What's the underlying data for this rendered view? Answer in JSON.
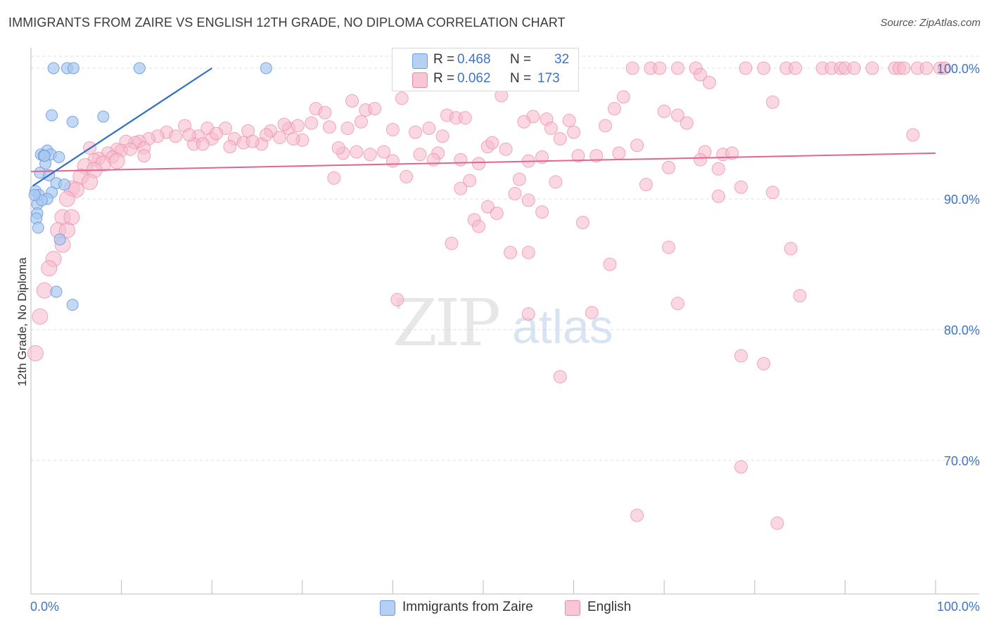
{
  "chart_data": {
    "type": "scatter",
    "title": "IMMIGRANTS FROM ZAIRE VS ENGLISH 12TH GRADE, NO DIPLOMA CORRELATION CHART",
    "source": "Source: ZipAtlas.com",
    "xlabel": "",
    "ylabel": "12th Grade, No Diploma",
    "xlim": [
      0,
      100
    ],
    "ylim": [
      60,
      100
    ],
    "x_tick_labels": [
      "0.0%",
      "100.0%"
    ],
    "y_ticks": [
      70,
      80,
      90,
      100
    ],
    "y_tick_labels": [
      "70.0%",
      "80.0%",
      "90.0%",
      "100.0%"
    ],
    "grid": true,
    "watermark": {
      "zip": "ZIP",
      "atlas": "atlas"
    },
    "legend_stats": [
      {
        "r_label": "R =",
        "r_value": "0.468",
        "n_label": "N =",
        "n_value": "32"
      },
      {
        "r_label": "R =",
        "r_value": "0.062",
        "n_label": "N =",
        "n_value": "173"
      }
    ],
    "series": [
      {
        "name": "Immigrants from Zaire",
        "color": "#6b9ee0",
        "fill": "#a9c8f0",
        "trend": {
          "x0": 0.2,
          "y0": 91.0,
          "x1": 20.0,
          "y1": 100.0,
          "color": "#2f6fc4"
        },
        "points": [
          [
            2.5,
            100
          ],
          [
            4.0,
            100
          ],
          [
            4.7,
            100
          ],
          [
            12.0,
            100
          ],
          [
            26.0,
            100
          ],
          [
            2.3,
            96.4
          ],
          [
            4.6,
            95.9
          ],
          [
            8.0,
            96.3
          ],
          [
            1.8,
            93.7
          ],
          [
            1.1,
            93.4
          ],
          [
            2.2,
            93.4
          ],
          [
            1.4,
            93.3
          ],
          [
            3.1,
            93.2
          ],
          [
            1.6,
            92.7
          ],
          [
            1.0,
            92.0
          ],
          [
            2.0,
            91.8
          ],
          [
            2.8,
            91.2
          ],
          [
            3.7,
            91.1
          ],
          [
            0.5,
            90.6
          ],
          [
            2.3,
            90.5
          ],
          [
            0.9,
            90.3
          ],
          [
            1.8,
            90.0
          ],
          [
            0.7,
            89.6
          ],
          [
            0.7,
            88.9
          ],
          [
            0.6,
            88.5
          ],
          [
            0.8,
            87.8
          ],
          [
            3.2,
            86.9
          ],
          [
            2.8,
            82.9
          ],
          [
            4.6,
            81.9
          ],
          [
            1.2,
            89.9
          ],
          [
            0.4,
            90.3
          ],
          [
            1.5,
            93.3
          ]
        ]
      },
      {
        "name": "English",
        "color": "#e889a8",
        "fill": "#f6bccd",
        "trend": {
          "x0": 0,
          "y0": 92.1,
          "x1": 100,
          "y1": 93.5,
          "color": "#e06690"
        },
        "points": [
          [
            66.5,
            100
          ],
          [
            68.5,
            100
          ],
          [
            69.5,
            100
          ],
          [
            71.5,
            100
          ],
          [
            73.5,
            100
          ],
          [
            79.0,
            100
          ],
          [
            81.0,
            100
          ],
          [
            83.5,
            100
          ],
          [
            84.5,
            100
          ],
          [
            87.5,
            100
          ],
          [
            88.5,
            100
          ],
          [
            89.5,
            100
          ],
          [
            90.0,
            100
          ],
          [
            91.0,
            100
          ],
          [
            93.0,
            100
          ],
          [
            95.5,
            100
          ],
          [
            96.0,
            100
          ],
          [
            96.5,
            100
          ],
          [
            98.0,
            100
          ],
          [
            99.0,
            100
          ],
          [
            100.5,
            100
          ],
          [
            101.0,
            100
          ],
          [
            74.0,
            99.5
          ],
          [
            75.0,
            98.9
          ],
          [
            52.0,
            97.9
          ],
          [
            35.5,
            97.5
          ],
          [
            41.0,
            97.7
          ],
          [
            82.0,
            97.4
          ],
          [
            65.5,
            97.8
          ],
          [
            31.5,
            96.9
          ],
          [
            32.5,
            96.6
          ],
          [
            37.0,
            96.8
          ],
          [
            38.0,
            96.9
          ],
          [
            46.0,
            96.4
          ],
          [
            47.0,
            96.2
          ],
          [
            48.0,
            96.2
          ],
          [
            55.5,
            96.3
          ],
          [
            57.0,
            96.1
          ],
          [
            59.5,
            96.0
          ],
          [
            64.5,
            96.9
          ],
          [
            70.0,
            96.7
          ],
          [
            71.5,
            96.4
          ],
          [
            33.0,
            95.5
          ],
          [
            35.0,
            95.4
          ],
          [
            36.5,
            95.9
          ],
          [
            40.0,
            95.3
          ],
          [
            44.0,
            95.4
          ],
          [
            54.5,
            95.9
          ],
          [
            57.5,
            95.4
          ],
          [
            60.0,
            95.1
          ],
          [
            63.5,
            95.6
          ],
          [
            72.5,
            95.8
          ],
          [
            97.5,
            94.9
          ],
          [
            17.0,
            95.6
          ],
          [
            19.5,
            95.4
          ],
          [
            21.5,
            95.4
          ],
          [
            24.0,
            95.2
          ],
          [
            26.5,
            95.2
          ],
          [
            28.5,
            95.4
          ],
          [
            29.5,
            95.6
          ],
          [
            30.0,
            94.5
          ],
          [
            15.0,
            95.1
          ],
          [
            16.0,
            94.8
          ],
          [
            14.0,
            94.8
          ],
          [
            13.0,
            94.6
          ],
          [
            12.0,
            94.4
          ],
          [
            11.5,
            94.3
          ],
          [
            10.5,
            94.4
          ],
          [
            18.5,
            94.8
          ],
          [
            20.0,
            94.6
          ],
          [
            22.5,
            94.6
          ],
          [
            23.5,
            94.3
          ],
          [
            25.5,
            94.2
          ],
          [
            27.5,
            94.7
          ],
          [
            29.0,
            94.6
          ],
          [
            18.0,
            94.2
          ],
          [
            19.0,
            94.2
          ],
          [
            9.5,
            93.8
          ],
          [
            10.0,
            93.7
          ],
          [
            8.5,
            93.5
          ],
          [
            9.0,
            93.2
          ],
          [
            7.5,
            93.1
          ],
          [
            7.0,
            93.0
          ],
          [
            8.0,
            92.7
          ],
          [
            36.0,
            93.6
          ],
          [
            39.0,
            93.6
          ],
          [
            43.0,
            93.4
          ],
          [
            45.0,
            93.5
          ],
          [
            47.5,
            93.0
          ],
          [
            50.5,
            94.0
          ],
          [
            52.5,
            93.8
          ],
          [
            56.5,
            93.2
          ],
          [
            60.5,
            93.3
          ],
          [
            62.5,
            93.3
          ],
          [
            65.0,
            93.5
          ],
          [
            74.5,
            93.6
          ],
          [
            76.5,
            93.4
          ],
          [
            77.5,
            93.5
          ],
          [
            37.5,
            93.4
          ],
          [
            34.5,
            93.5
          ],
          [
            40.0,
            92.9
          ],
          [
            44.5,
            93.0
          ],
          [
            49.5,
            92.7
          ],
          [
            55.0,
            92.9
          ],
          [
            70.5,
            92.4
          ],
          [
            74.0,
            93.0
          ],
          [
            76.0,
            92.3
          ],
          [
            6.0,
            92.5
          ],
          [
            7.0,
            92.2
          ],
          [
            5.5,
            91.7
          ],
          [
            6.5,
            91.3
          ],
          [
            9.5,
            92.9
          ],
          [
            11.0,
            93.8
          ],
          [
            12.5,
            93.9
          ],
          [
            33.5,
            91.6
          ],
          [
            41.5,
            91.7
          ],
          [
            48.5,
            91.4
          ],
          [
            54.0,
            91.5
          ],
          [
            58.0,
            91.3
          ],
          [
            68.0,
            91.1
          ],
          [
            78.5,
            90.9
          ],
          [
            4.5,
            90.8
          ],
          [
            5.0,
            90.7
          ],
          [
            4.0,
            90.0
          ],
          [
            47.5,
            90.8
          ],
          [
            53.5,
            90.4
          ],
          [
            55.0,
            89.9
          ],
          [
            76.0,
            90.2
          ],
          [
            82.0,
            90.5
          ],
          [
            3.5,
            88.6
          ],
          [
            4.5,
            88.6
          ],
          [
            3.0,
            87.6
          ],
          [
            4.0,
            87.6
          ],
          [
            50.5,
            89.4
          ],
          [
            51.5,
            88.9
          ],
          [
            56.5,
            89.0
          ],
          [
            61.0,
            88.2
          ],
          [
            49.0,
            88.4
          ],
          [
            49.5,
            87.9
          ],
          [
            3.5,
            86.5
          ],
          [
            46.5,
            86.6
          ],
          [
            70.5,
            86.3
          ],
          [
            84.0,
            86.2
          ],
          [
            53.0,
            85.9
          ],
          [
            55.0,
            85.9
          ],
          [
            64.0,
            85.0
          ],
          [
            2.5,
            85.4
          ],
          [
            2.0,
            84.7
          ],
          [
            1.5,
            83.0
          ],
          [
            1.0,
            81.0
          ],
          [
            40.5,
            82.3
          ],
          [
            71.5,
            82.0
          ],
          [
            85.0,
            82.6
          ],
          [
            55.0,
            81.2
          ],
          [
            62.0,
            81.3
          ],
          [
            0.5,
            78.2
          ],
          [
            78.5,
            78.0
          ],
          [
            81.0,
            77.4
          ],
          [
            58.5,
            76.4
          ],
          [
            78.5,
            69.5
          ],
          [
            67.0,
            65.8
          ],
          [
            82.5,
            65.2
          ],
          [
            20.5,
            95.0
          ],
          [
            31.0,
            95.8
          ],
          [
            26.0,
            94.9
          ],
          [
            24.5,
            94.4
          ],
          [
            22.0,
            94.0
          ],
          [
            17.5,
            94.9
          ],
          [
            28.0,
            95.7
          ],
          [
            34.0,
            93.9
          ],
          [
            42.5,
            95.1
          ],
          [
            45.5,
            94.8
          ],
          [
            51.0,
            94.3
          ],
          [
            58.5,
            94.6
          ],
          [
            67.0,
            94.1
          ],
          [
            6.5,
            93.9
          ],
          [
            12.5,
            93.3
          ]
        ]
      }
    ]
  }
}
